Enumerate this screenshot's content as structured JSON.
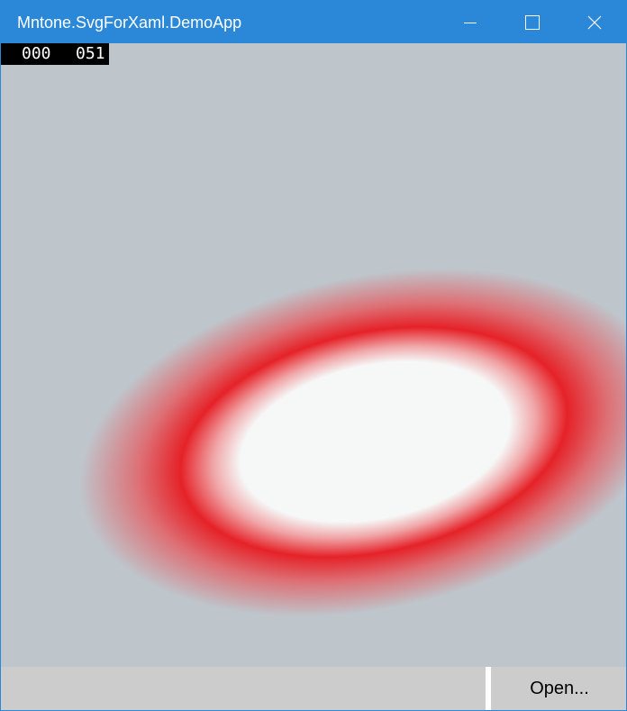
{
  "window": {
    "title": "Mntone.SvgForXaml.DemoApp",
    "controls": [
      "minimize",
      "maximize",
      "close"
    ]
  },
  "counter": {
    "first": "000",
    "second": "051"
  },
  "canvas": {
    "background_color": "#bec6cc",
    "gradient_colors": [
      "#f6f7f7",
      "#e52228",
      "#bec6cc"
    ]
  },
  "bottom_bar": {
    "open_button_label": "Open..."
  }
}
